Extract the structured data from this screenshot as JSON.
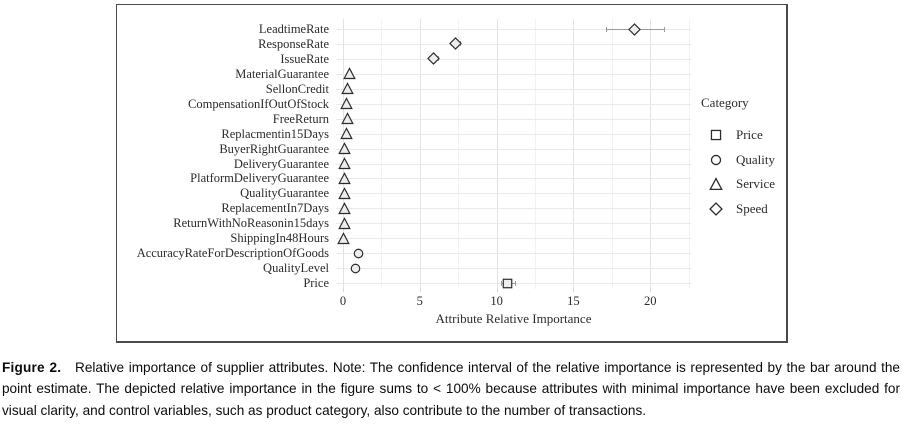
{
  "figure": {
    "caption_label": "Figure 2.",
    "caption_text": "Relative importance of supplier attributes. Note: The confidence interval of the relative importance is represented by the bar around the point estimate. The depicted relative importance in the figure sums to < 100% because attributes with minimal importance have been excluded for visual clarity, and control variables, such as product category, also contribute to the number of transactions."
  },
  "chart_data": {
    "type": "scatter",
    "subtype": "horizontal-dotplot-with-ci",
    "title": "",
    "xlabel": "Attribute Relative Importance",
    "ylabel": "",
    "xlim": [
      -0.5,
      23
    ],
    "x_ticks": [
      0,
      5,
      10,
      15,
      20
    ],
    "x_minor_step": 2.5,
    "grid": true,
    "legend": {
      "title": "Category",
      "position": "right",
      "entries": [
        {
          "label": "Price",
          "marker": "square"
        },
        {
          "label": "Quality",
          "marker": "circle"
        },
        {
          "label": "Service",
          "marker": "triangle"
        },
        {
          "label": "Speed",
          "marker": "diamond"
        }
      ]
    },
    "points": [
      {
        "label": "LeadtimeRate",
        "category": "Speed",
        "marker": "diamond",
        "value": 19.0,
        "ci": [
          17.1,
          20.9
        ]
      },
      {
        "label": "ResponseRate",
        "category": "Speed",
        "marker": "diamond",
        "value": 7.3,
        "ci": [
          7.0,
          7.6
        ]
      },
      {
        "label": "IssueRate",
        "category": "Speed",
        "marker": "diamond",
        "value": 5.9,
        "ci": [
          5.6,
          6.2
        ]
      },
      {
        "label": "MaterialGuarantee",
        "category": "Service",
        "marker": "triangle",
        "value": 0.4,
        "ci": [
          0.3,
          0.5
        ]
      },
      {
        "label": "SellonCredit",
        "category": "Service",
        "marker": "triangle",
        "value": 0.3,
        "ci": [
          0.25,
          0.35
        ]
      },
      {
        "label": "CompensationIfOutOfStock",
        "category": "Service",
        "marker": "triangle",
        "value": 0.2,
        "ci": [
          0.15,
          0.25
        ]
      },
      {
        "label": "FreeReturn",
        "category": "Service",
        "marker": "triangle",
        "value": 0.3,
        "ci": [
          0.25,
          0.35
        ]
      },
      {
        "label": "Replacmentin15Days",
        "category": "Service",
        "marker": "triangle",
        "value": 0.25,
        "ci": [
          0.2,
          0.3
        ]
      },
      {
        "label": "BuyerRightGuarantee",
        "category": "Service",
        "marker": "triangle",
        "value": 0.1,
        "ci": [
          0.05,
          0.15
        ]
      },
      {
        "label": "DeliveryGuarantee",
        "category": "Service",
        "marker": "triangle",
        "value": 0.1,
        "ci": [
          0.05,
          0.15
        ]
      },
      {
        "label": "PlatformDeliveryGuarantee",
        "category": "Service",
        "marker": "triangle",
        "value": 0.1,
        "ci": [
          0.05,
          0.15
        ]
      },
      {
        "label": "QualityGuarantee",
        "category": "Service",
        "marker": "triangle",
        "value": 0.12,
        "ci": [
          0.07,
          0.17
        ]
      },
      {
        "label": "ReplacementIn7Days",
        "category": "Service",
        "marker": "triangle",
        "value": 0.1,
        "ci": [
          0.05,
          0.15
        ]
      },
      {
        "label": "ReturnWithNoReasonin15days",
        "category": "Service",
        "marker": "triangle",
        "value": 0.1,
        "ci": [
          0.05,
          0.15
        ]
      },
      {
        "label": "ShippingIn48Hours",
        "category": "Service",
        "marker": "triangle",
        "value": 0.05,
        "ci": [
          0.0,
          0.1
        ]
      },
      {
        "label": "AccuracyRateForDescriptionOfGoods",
        "category": "Quality",
        "marker": "circle",
        "value": 1.0,
        "ci": [
          0.9,
          1.1
        ]
      },
      {
        "label": "QualityLevel",
        "category": "Quality",
        "marker": "circle",
        "value": 0.8,
        "ci": [
          0.7,
          0.9
        ]
      },
      {
        "label": "Price",
        "category": "Price",
        "marker": "square",
        "value": 10.7,
        "ci": [
          10.3,
          11.2
        ]
      }
    ]
  },
  "colors": {
    "marker_stroke": "#2b2b2b",
    "marker_fill": "#ededed",
    "errorbar": "#9b9b9b",
    "gridline_major": "#e3e3e3",
    "gridline_minor": "#f2f2f2",
    "frame_border": "#4a4a4a",
    "text": "#2b2b2b"
  }
}
